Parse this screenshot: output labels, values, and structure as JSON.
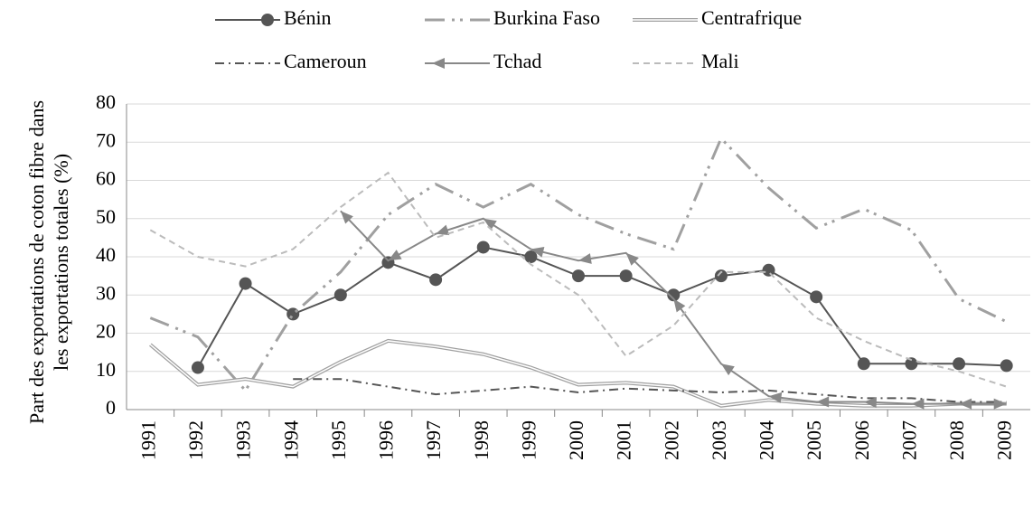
{
  "chart_data": {
    "type": "line",
    "ylabel": [
      "Part des exportations de coton fibre dans",
      "les exportations totales (%)"
    ],
    "categories": [
      "1991",
      "1992",
      "1993",
      "1994",
      "1995",
      "1996",
      "1997",
      "1998",
      "1999",
      "2000",
      "2001",
      "2002",
      "2003",
      "2004",
      "2005",
      "2006",
      "2007",
      "2008",
      "2009"
    ],
    "ylim": [
      0,
      80
    ],
    "yticks": [
      0,
      10,
      20,
      30,
      40,
      50,
      60,
      70,
      80
    ],
    "grid": true,
    "series": [
      {
        "name": "Bénin",
        "color": "#555555",
        "dash": "solid",
        "marker": "circle",
        "values": [
          null,
          11,
          33,
          25,
          30,
          38.5,
          34,
          42.5,
          40,
          35,
          35,
          30,
          35,
          36.5,
          29.5,
          12,
          12,
          12,
          11.5
        ]
      },
      {
        "name": "Burkina Faso",
        "color": "#a0a0a0",
        "dash": "dashdotdot",
        "values": [
          24,
          19,
          5,
          25,
          36,
          51,
          59,
          53,
          59,
          51,
          46,
          42,
          71,
          58,
          47.5,
          52.5,
          47,
          29,
          23
        ]
      },
      {
        "name": "Centrafrique",
        "color": "#a0a0a0",
        "dash": "double",
        "values": [
          17,
          6.5,
          8,
          6,
          12.5,
          18,
          16.5,
          14.5,
          11,
          6.5,
          7,
          6,
          1,
          2.5,
          1.5,
          1,
          1,
          1.5,
          1.5
        ]
      },
      {
        "name": "Cameroun",
        "color": "#555555",
        "dash": "dashdot",
        "values": [
          null,
          null,
          null,
          8,
          8,
          6,
          4,
          5,
          6,
          4.5,
          5.5,
          5,
          4.5,
          5,
          4,
          3,
          3,
          2,
          2
        ]
      },
      {
        "name": "Tchad",
        "color": "#888888",
        "dash": "solid",
        "marker": "arrow",
        "values": [
          null,
          null,
          null,
          null,
          52,
          39,
          46,
          50,
          42,
          39,
          41,
          29,
          12,
          3.5,
          2,
          2,
          1.5,
          1.5,
          1.5
        ]
      },
      {
        "name": "Mali",
        "color": "#bbbbbb",
        "dash": "dashed",
        "values": [
          47,
          40,
          37.5,
          42,
          53,
          62,
          45,
          49,
          38,
          30,
          14,
          22,
          36,
          36,
          24,
          18,
          13,
          10,
          6
        ]
      }
    ]
  }
}
